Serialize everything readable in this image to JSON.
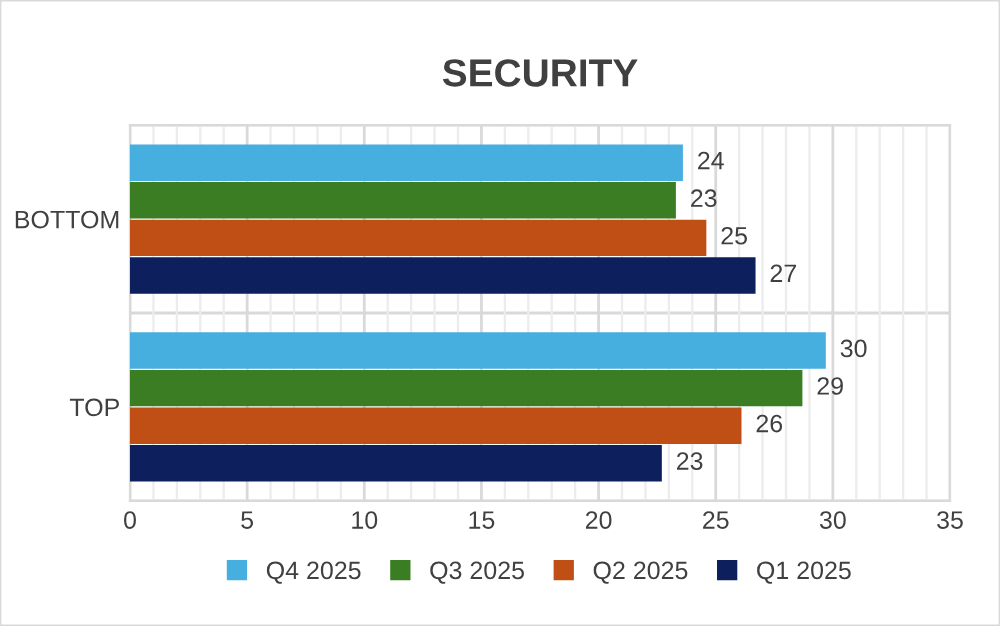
{
  "chart_data": {
    "type": "bar",
    "title": "SECURITY",
    "orientation": "horizontal",
    "categories": [
      "BOTTOM",
      "TOP"
    ],
    "series": [
      {
        "name": "Q4 2025",
        "color": "#47aee0",
        "values": [
          23.6,
          29.7
        ],
        "value_labels": [
          "24",
          "30"
        ]
      },
      {
        "name": "Q3 2025",
        "color": "#3a7d23",
        "values": [
          23.3,
          28.7
        ],
        "value_labels": [
          "23",
          "29"
        ]
      },
      {
        "name": "Q2 2025",
        "color": "#c04f15",
        "values": [
          24.6,
          26.1
        ],
        "value_labels": [
          "25",
          "26"
        ]
      },
      {
        "name": "Q1 2025",
        "color": "#0d1f5c",
        "values": [
          26.7,
          22.7
        ],
        "value_labels": [
          "27",
          "23"
        ]
      }
    ],
    "xlim": [
      0,
      35
    ],
    "xticks": [
      0,
      5,
      10,
      15,
      20,
      25,
      30,
      35
    ],
    "grid": true,
    "legend": "bottom"
  }
}
